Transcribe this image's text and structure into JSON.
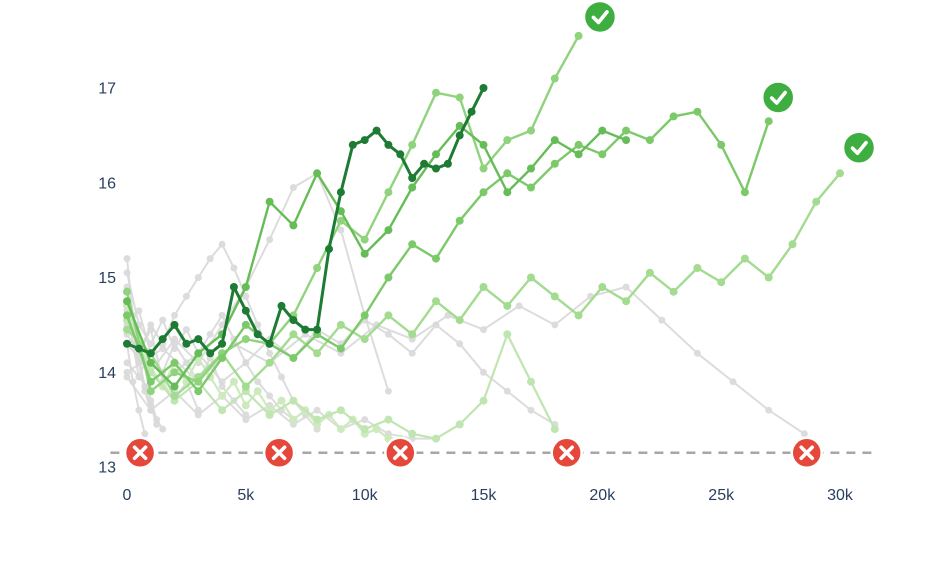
{
  "chart_data": {
    "type": "line",
    "title": "",
    "xlabel": "",
    "ylabel": "",
    "grid": false,
    "legend": "none",
    "axis_font_color": "#2a3f5f",
    "xlim": [
      -700,
      31500
    ],
    "ylim": [
      12.85,
      17.9
    ],
    "x_ticks": [
      {
        "value": 0,
        "label": "0"
      },
      {
        "value": 5000,
        "label": "5k"
      },
      {
        "value": 10000,
        "label": "10k"
      },
      {
        "value": 15000,
        "label": "15k"
      },
      {
        "value": 20000,
        "label": "20k"
      },
      {
        "value": 25000,
        "label": "25k"
      },
      {
        "value": 30000,
        "label": "30k"
      }
    ],
    "y_ticks": [
      {
        "value": 13,
        "label": "13"
      },
      {
        "value": 14,
        "label": "14"
      },
      {
        "value": 15,
        "label": "15"
      },
      {
        "value": 16,
        "label": "16"
      },
      {
        "value": 17,
        "label": "17"
      }
    ],
    "threshold": {
      "y": 13.15,
      "style": "dashed",
      "color": "#a6a6a6",
      "width": 2.5
    },
    "series": [
      {
        "name": "run-gray-1",
        "role": "stopped",
        "color": "#d9d9d9",
        "opacity": 0.9,
        "width": 2,
        "marker_radius": 3.5,
        "x_start": 0,
        "x_step": 250,
        "y": [
          15.2,
          14.6,
          14.1,
          13.8,
          13.6
        ]
      },
      {
        "name": "run-gray-2",
        "role": "stopped",
        "color": "#d9d9d9",
        "opacity": 0.9,
        "width": 2,
        "marker_radius": 3.5,
        "x_start": 0,
        "x_step": 250,
        "y": [
          14.9,
          14.3,
          13.95,
          14.1,
          13.7,
          13.5,
          13.4
        ]
      },
      {
        "name": "run-gray-3",
        "role": "stopped",
        "color": "#d9d9d9",
        "opacity": 0.9,
        "width": 2,
        "marker_radius": 3.5,
        "x_start": 0,
        "x_step": 250,
        "y": [
          14.3,
          13.9,
          13.6,
          13.35
        ]
      },
      {
        "name": "run-gray-4",
        "role": "stopped",
        "color": "#d9d9d9",
        "opacity": 0.9,
        "width": 2,
        "marker_radius": 3.5,
        "x_start": 0,
        "x_step": 250,
        "y": [
          14.65,
          14.45,
          14.15,
          13.85,
          13.65,
          13.45
        ]
      },
      {
        "name": "run-gray-5",
        "role": "stopped",
        "color": "#d9d9d9",
        "opacity": 0.9,
        "width": 2,
        "marker_radius": 3.5,
        "x_start": 0,
        "x_step": 500,
        "y": [
          14.7,
          14.2,
          14.45,
          13.9,
          13.7,
          13.9,
          13.6
        ]
      },
      {
        "name": "run-gray-6",
        "role": "stopped",
        "color": "#d9d9d9",
        "opacity": 0.9,
        "width": 2,
        "marker_radius": 3.5,
        "x_start": 0,
        "x_step": 500,
        "y": [
          14.5,
          14.65,
          14.2,
          14.0,
          14.3,
          14.1,
          13.9,
          14.15,
          13.85,
          13.7,
          13.55
        ]
      },
      {
        "name": "run-gray-7",
        "role": "stopped",
        "color": "#d9d9d9",
        "opacity": 0.9,
        "width": 2,
        "marker_radius": 3.5,
        "x_start": 0,
        "x_step": 500,
        "y": [
          15.05,
          14.5,
          14.3,
          14.55,
          14.25,
          14.45,
          14.2,
          14.4,
          14.6,
          14.35,
          14.1,
          13.9,
          13.75,
          13.6,
          13.5
        ]
      },
      {
        "name": "run-gray-8",
        "role": "stopped",
        "color": "#d9d9d9",
        "opacity": 0.9,
        "width": 2,
        "marker_radius": 3.5,
        "x_start": 0,
        "x_step": 500,
        "y": [
          14.4,
          14.2,
          14.5,
          14.3,
          14.6,
          14.8,
          15.0,
          15.2,
          15.35,
          15.1,
          14.8,
          14.5,
          14.2,
          13.95,
          13.7,
          13.55,
          13.4
        ]
      },
      {
        "name": "run-gray-9",
        "role": "stopped",
        "color": "#d9d9d9",
        "opacity": 0.9,
        "width": 2,
        "marker_radius": 3.5,
        "x_start": 0,
        "x_step": 1000,
        "y": [
          14.3,
          14.0,
          14.35,
          14.1,
          14.5,
          14.9,
          15.4,
          15.95,
          16.1,
          15.5,
          14.6,
          13.8
        ]
      },
      {
        "name": "run-gray-10",
        "role": "stopped",
        "color": "#d9d9d9",
        "opacity": 0.9,
        "width": 2,
        "marker_radius": 3.5,
        "x_start": 0,
        "x_step": 1000,
        "y": [
          14.1,
          13.8,
          14.0,
          14.2,
          13.9,
          14.1,
          14.35,
          14.15,
          14.45,
          14.3,
          14.55,
          14.4,
          14.2,
          14.5,
          14.3,
          14.0,
          13.8,
          13.6,
          13.45
        ]
      },
      {
        "name": "run-gray-11",
        "role": "stopped",
        "color": "#d9d9d9",
        "opacity": 0.9,
        "width": 2,
        "marker_radius": 3.5,
        "x_start": 0,
        "x_step": 1500,
        "y": [
          14.0,
          14.25,
          13.9,
          14.3,
          14.1,
          14.4,
          14.2,
          14.5,
          14.35,
          14.6,
          14.45,
          14.7,
          14.5,
          14.8,
          14.9,
          14.55,
          14.2,
          13.9,
          13.6,
          13.35
        ]
      },
      {
        "name": "run-gray-12",
        "role": "stopped",
        "color": "#d9d9d9",
        "opacity": 0.9,
        "width": 2,
        "marker_radius": 3.5,
        "x_start": 0,
        "x_step": 1000,
        "y": [
          13.95,
          13.6,
          13.8,
          13.55,
          13.75,
          13.5,
          13.65,
          13.45,
          13.6,
          13.4,
          13.5,
          13.35,
          13.3,
          13.3
        ]
      },
      {
        "name": "run-green-low-11k",
        "role": "surviving",
        "color": "#cdeabf",
        "opacity": 1,
        "width": 2.2,
        "marker_radius": 4,
        "x_start": 0,
        "x_step": 500,
        "y": [
          14.7,
          14.35,
          14.05,
          13.85,
          14.1,
          13.9,
          14.15,
          13.95,
          13.75,
          13.9,
          13.65,
          13.8,
          13.6,
          13.7,
          13.5,
          13.6,
          13.45,
          13.55,
          13.4,
          13.5,
          13.35,
          13.4,
          13.3,
          13.3
        ]
      },
      {
        "name": "run-green-low-19k",
        "role": "surviving",
        "color": "#bfe5b0",
        "opacity": 1,
        "width": 2.2,
        "marker_radius": 4,
        "x_start": 0,
        "x_step": 1000,
        "y": [
          14.55,
          14.0,
          13.7,
          13.9,
          13.6,
          13.8,
          13.55,
          13.7,
          13.5,
          13.6,
          13.4,
          13.5,
          13.35,
          13.3,
          13.45,
          13.7,
          14.4,
          13.9,
          13.4
        ]
      },
      {
        "name": "run-green-30k",
        "role": "completed",
        "color": "#a3db90",
        "opacity": 1,
        "width": 2.4,
        "marker_radius": 4,
        "x_start": 0,
        "x_step": 1000,
        "y": [
          14.45,
          14.2,
          13.75,
          13.95,
          14.2,
          13.85,
          14.1,
          14.4,
          14.2,
          14.5,
          14.35,
          14.6,
          14.4,
          14.75,
          14.55,
          14.9,
          14.7,
          15.0,
          14.8,
          14.6,
          14.9,
          14.75,
          15.05,
          14.85,
          15.1,
          14.95,
          15.2,
          15.0,
          15.35,
          15.8,
          16.1
        ]
      },
      {
        "name": "run-green-top-19k",
        "role": "completed",
        "color": "#8fd37c",
        "opacity": 1,
        "width": 2.4,
        "marker_radius": 4,
        "x_start": 0,
        "x_step": 1000,
        "y": [
          14.85,
          13.8,
          14.0,
          13.9,
          14.2,
          14.35,
          14.3,
          14.6,
          15.1,
          15.6,
          15.4,
          15.9,
          16.4,
          16.95,
          16.9,
          16.15,
          16.45,
          16.55,
          17.1,
          17.55
        ]
      },
      {
        "name": "run-green-27k",
        "role": "completed",
        "color": "#7cc96a",
        "opacity": 1,
        "width": 2.4,
        "marker_radius": 4,
        "x_start": 0,
        "x_step": 1000,
        "y": [
          14.6,
          13.9,
          14.1,
          13.8,
          14.15,
          14.5,
          14.3,
          14.15,
          14.4,
          14.25,
          14.6,
          15.0,
          15.35,
          15.2,
          15.6,
          15.9,
          16.1,
          15.95,
          16.2,
          16.4,
          16.3,
          16.55,
          16.45,
          16.7,
          16.75,
          16.4,
          15.9,
          16.65
        ]
      },
      {
        "name": "run-green-21k",
        "role": "surviving",
        "color": "#66bd58",
        "opacity": 1,
        "width": 2.4,
        "marker_radius": 4,
        "x_start": 0,
        "x_step": 1000,
        "y": [
          14.75,
          14.1,
          13.85,
          14.2,
          14.4,
          14.9,
          15.8,
          15.55,
          16.1,
          15.7,
          15.25,
          15.5,
          15.95,
          16.3,
          16.6,
          16.4,
          15.9,
          16.15,
          16.45,
          16.3,
          16.55,
          16.45
        ]
      },
      {
        "name": "run-dark-best",
        "role": "best",
        "color": "#1e7b33",
        "opacity": 1,
        "width": 3,
        "marker_radius": 4,
        "x_start": 0,
        "x_step": 500,
        "y": [
          14.3,
          14.25,
          14.2,
          14.35,
          14.5,
          14.3,
          14.35,
          14.2,
          14.3,
          14.9,
          14.65,
          14.4,
          14.3,
          14.7,
          14.55,
          14.45,
          14.45,
          15.3,
          15.9,
          16.4,
          16.45,
          16.55,
          16.4,
          16.3,
          16.05,
          16.2,
          16.15,
          16.2,
          16.5,
          16.75,
          17.0
        ]
      }
    ],
    "badges": {
      "terminated": {
        "icon": "x-circle",
        "color": "#e5473a",
        "icon_color": "#ffffff",
        "radius": 15,
        "points": [
          {
            "x": 550,
            "y": 13.15
          },
          {
            "x": 6400,
            "y": 13.15
          },
          {
            "x": 11500,
            "y": 13.15
          },
          {
            "x": 18500,
            "y": 13.15
          },
          {
            "x": 28600,
            "y": 13.15
          }
        ]
      },
      "completed": {
        "icon": "check-circle",
        "color": "#3fae41",
        "icon_color": "#ffffff",
        "radius": 16,
        "points": [
          {
            "x": 19900,
            "y": 17.75
          },
          {
            "x": 27400,
            "y": 16.9
          },
          {
            "x": 30800,
            "y": 16.37
          }
        ]
      }
    }
  }
}
